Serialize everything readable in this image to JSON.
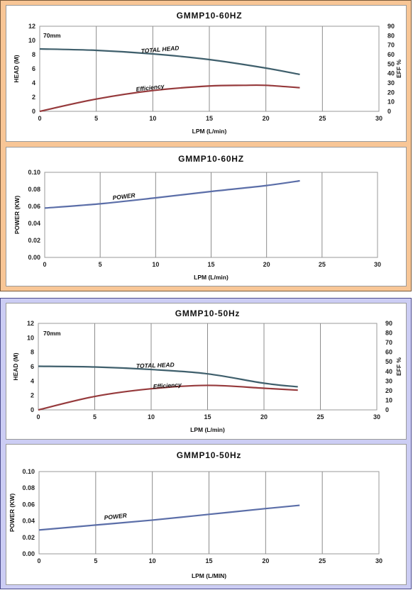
{
  "chart_data": [
    {
      "type": "line",
      "title": "GMMP10-60HZ",
      "annotation": "70mm",
      "xlabel": "LPM (L/min)",
      "ylabel": "HEAD (M)",
      "y2label": "EFF %",
      "xlim": [
        0,
        30
      ],
      "ylim": [
        0,
        12
      ],
      "y2lim": [
        0,
        90
      ],
      "xticks": [
        "0",
        "5",
        "10",
        "15",
        "20",
        "25",
        "30"
      ],
      "yticks": [
        "0",
        "2",
        "4",
        "6",
        "8",
        "10",
        "12"
      ],
      "y2ticks": [
        "0",
        "10",
        "20",
        "30",
        "40",
        "50",
        "60",
        "70",
        "80",
        "90"
      ],
      "grid": true,
      "series": [
        {
          "name": "TOTAL HEAD",
          "axis": "left",
          "color": "#3f5f6c",
          "x": [
            0,
            5,
            10,
            15,
            20,
            23
          ],
          "y": [
            8.8,
            8.6,
            8.1,
            7.3,
            6.1,
            5.2
          ]
        },
        {
          "name": "Efficiency",
          "axis": "right",
          "color": "#963a3c",
          "x": [
            0,
            5,
            10,
            15,
            18,
            20,
            23
          ],
          "y": [
            0,
            13,
            22,
            26.8,
            27.5,
            27.5,
            25
          ]
        }
      ]
    },
    {
      "type": "line",
      "title": "GMMP10-60HZ",
      "xlabel": "LPM  (L/min)",
      "ylabel": "POWER (KW)",
      "xlim": [
        0,
        30
      ],
      "ylim": [
        0,
        0.1
      ],
      "xticks": [
        "0",
        "5",
        "10",
        "15",
        "20",
        "25",
        "30"
      ],
      "yticks": [
        "0.00",
        "0.02",
        "0.04",
        "0.06",
        "0.08",
        "0.10"
      ],
      "grid": true,
      "series": [
        {
          "name": "POWER",
          "color": "#5b6ea8",
          "x": [
            0,
            5,
            10,
            15,
            20,
            23
          ],
          "y": [
            0.058,
            0.063,
            0.07,
            0.0775,
            0.0845,
            0.09
          ]
        }
      ]
    },
    {
      "type": "line",
      "title": "GMMP10-50Hz",
      "annotation": "70mm",
      "xlabel": "LPM (L/min)",
      "ylabel": "HEAD (M)",
      "y2label": "EFF %",
      "xlim": [
        0,
        30
      ],
      "ylim": [
        0,
        12
      ],
      "y2lim": [
        0,
        90
      ],
      "xticks": [
        "0",
        "5",
        "10",
        "15",
        "20",
        "25",
        "30"
      ],
      "yticks": [
        "0",
        "2",
        "4",
        "6",
        "8",
        "10",
        "12"
      ],
      "y2ticks": [
        "0",
        "10",
        "20",
        "30",
        "40",
        "50",
        "60",
        "70",
        "80",
        "90"
      ],
      "grid": true,
      "series": [
        {
          "name": "TOTAL HEAD",
          "axis": "left",
          "color": "#3f5f6c",
          "x": [
            0,
            5,
            10,
            15,
            20,
            23
          ],
          "y": [
            6.05,
            5.95,
            5.6,
            5.0,
            3.7,
            3.2
          ]
        },
        {
          "name": "Efficiency",
          "axis": "right",
          "color": "#963a3c",
          "x": [
            0,
            5,
            10,
            15,
            20,
            23
          ],
          "y": [
            0,
            14,
            22,
            25.5,
            22.5,
            20.5
          ]
        }
      ]
    },
    {
      "type": "line",
      "title": "GMMP10-50Hz",
      "xlabel": "LPM  (L/MIN)",
      "ylabel": "POWER (KW)",
      "xlim": [
        0,
        30
      ],
      "ylim": [
        0,
        0.1
      ],
      "xticks": [
        "0",
        "5",
        "10",
        "15",
        "20",
        "25",
        "30"
      ],
      "yticks": [
        "0.00",
        "0.02",
        "0.04",
        "0.06",
        "0.08",
        "0.10"
      ],
      "grid": true,
      "series": [
        {
          "name": "POWER",
          "color": "#5b6ea8",
          "x": [
            0,
            5,
            10,
            15,
            20,
            23
          ],
          "y": [
            0.029,
            0.035,
            0.041,
            0.048,
            0.055,
            0.059
          ]
        }
      ]
    }
  ]
}
